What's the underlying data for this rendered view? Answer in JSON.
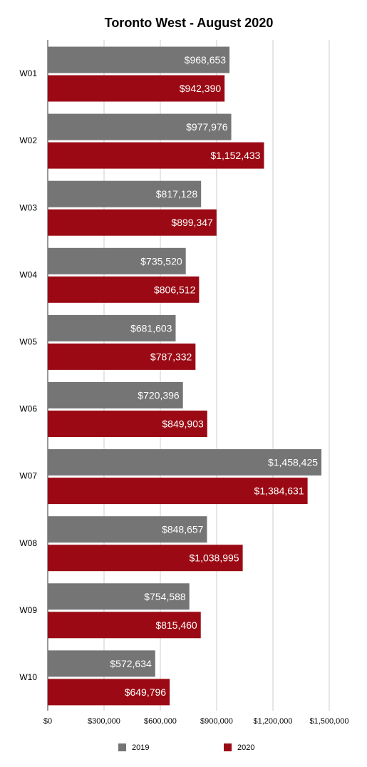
{
  "chart_data": {
    "type": "bar",
    "orientation": "horizontal",
    "title": "Toronto West - August 2020",
    "xlabel": "",
    "ylabel": "",
    "categories": [
      "W01",
      "W02",
      "W03",
      "W04",
      "W05",
      "W06",
      "W07",
      "W08",
      "W09",
      "W10"
    ],
    "series": [
      {
        "name": "2019",
        "color": "#757575",
        "values": [
          968653,
          977976,
          817128,
          735520,
          681603,
          720396,
          1458425,
          848657,
          754588,
          572634
        ],
        "labels": [
          "$968,653",
          "$977,976",
          "$817,128",
          "$735,520",
          "$681,603",
          "$720,396",
          "$1,458,425",
          "$848,657",
          "$754,588",
          "$572,634"
        ]
      },
      {
        "name": "2020",
        "color": "#9b0a14",
        "values": [
          942390,
          1152433,
          899347,
          806512,
          787332,
          849903,
          1384631,
          1038995,
          815460,
          649796
        ],
        "labels": [
          "$942,390",
          "$1,152,433",
          "$899,347",
          "$806,512",
          "$787,332",
          "$849,903",
          "$1,384,631",
          "$1,038,995",
          "$815,460",
          "$649,796"
        ]
      }
    ],
    "xlim": [
      0,
      1500000
    ],
    "xticks": [
      0,
      300000,
      600000,
      900000,
      1200000,
      1500000
    ],
    "xtick_labels": [
      "$0",
      "$300,000",
      "$600,000",
      "$900,000",
      "$1,200,000",
      "$1,500,000"
    ],
    "grid": true,
    "legend_position": "bottom"
  }
}
